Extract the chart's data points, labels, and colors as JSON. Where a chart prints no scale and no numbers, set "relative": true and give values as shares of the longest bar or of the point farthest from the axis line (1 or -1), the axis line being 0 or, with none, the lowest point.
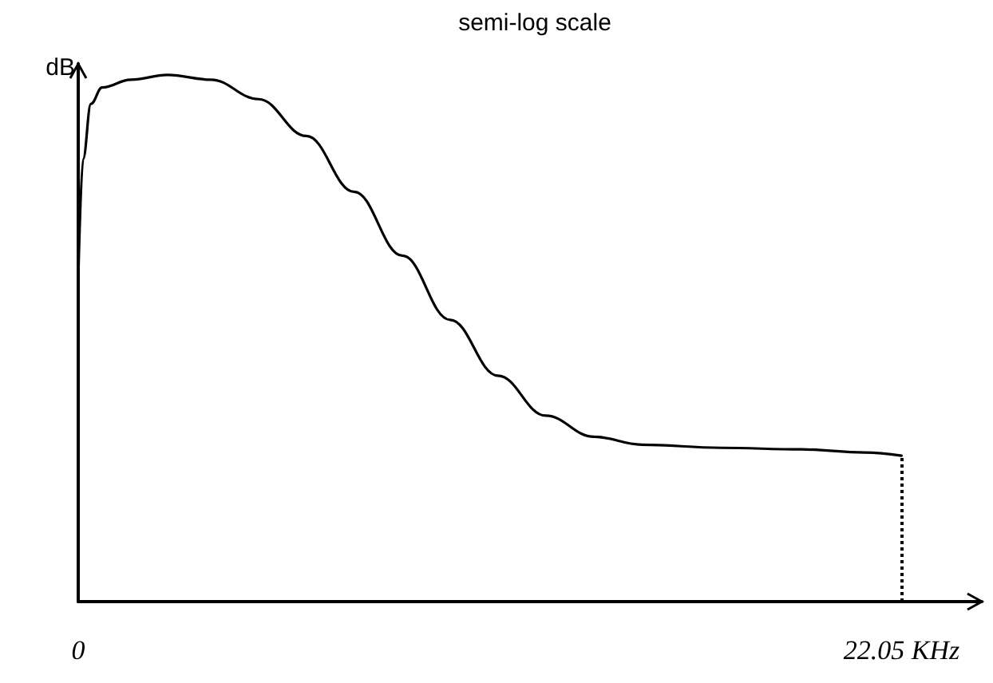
{
  "chart_data": {
    "type": "line",
    "title": "semi-log scale",
    "ylabel": "dB",
    "relative": true,
    "x": [
      0,
      0.13,
      0.34,
      0.64,
      1.41,
      2.39,
      3.55,
      4.83,
      6.11,
      7.39,
      8.68,
      9.96,
      11.24,
      12.52,
      13.81,
      15.09,
      17.22,
      19.36,
      21.07,
      22.05
    ],
    "series": [
      {
        "color": "#000000",
        "values": [
          0.61,
          0.84,
          0.945,
          0.976,
          0.991,
          1.0,
          0.991,
          0.954,
          0.884,
          0.778,
          0.657,
          0.535,
          0.429,
          0.353,
          0.313,
          0.298,
          0.292,
          0.289,
          0.283,
          0.277
        ]
      }
    ],
    "xlim": [
      0,
      24.2
    ],
    "xticks": [
      {
        "value": 0,
        "label": "0"
      },
      {
        "value": 22.05,
        "label": "22.05 KHz"
      }
    ],
    "ref_lines": [
      {
        "axis": "x",
        "value": 22.05,
        "line_style": "dotted",
        "color": "#000000"
      }
    ],
    "grid": false,
    "marker": "none",
    "line_style": "solid"
  }
}
